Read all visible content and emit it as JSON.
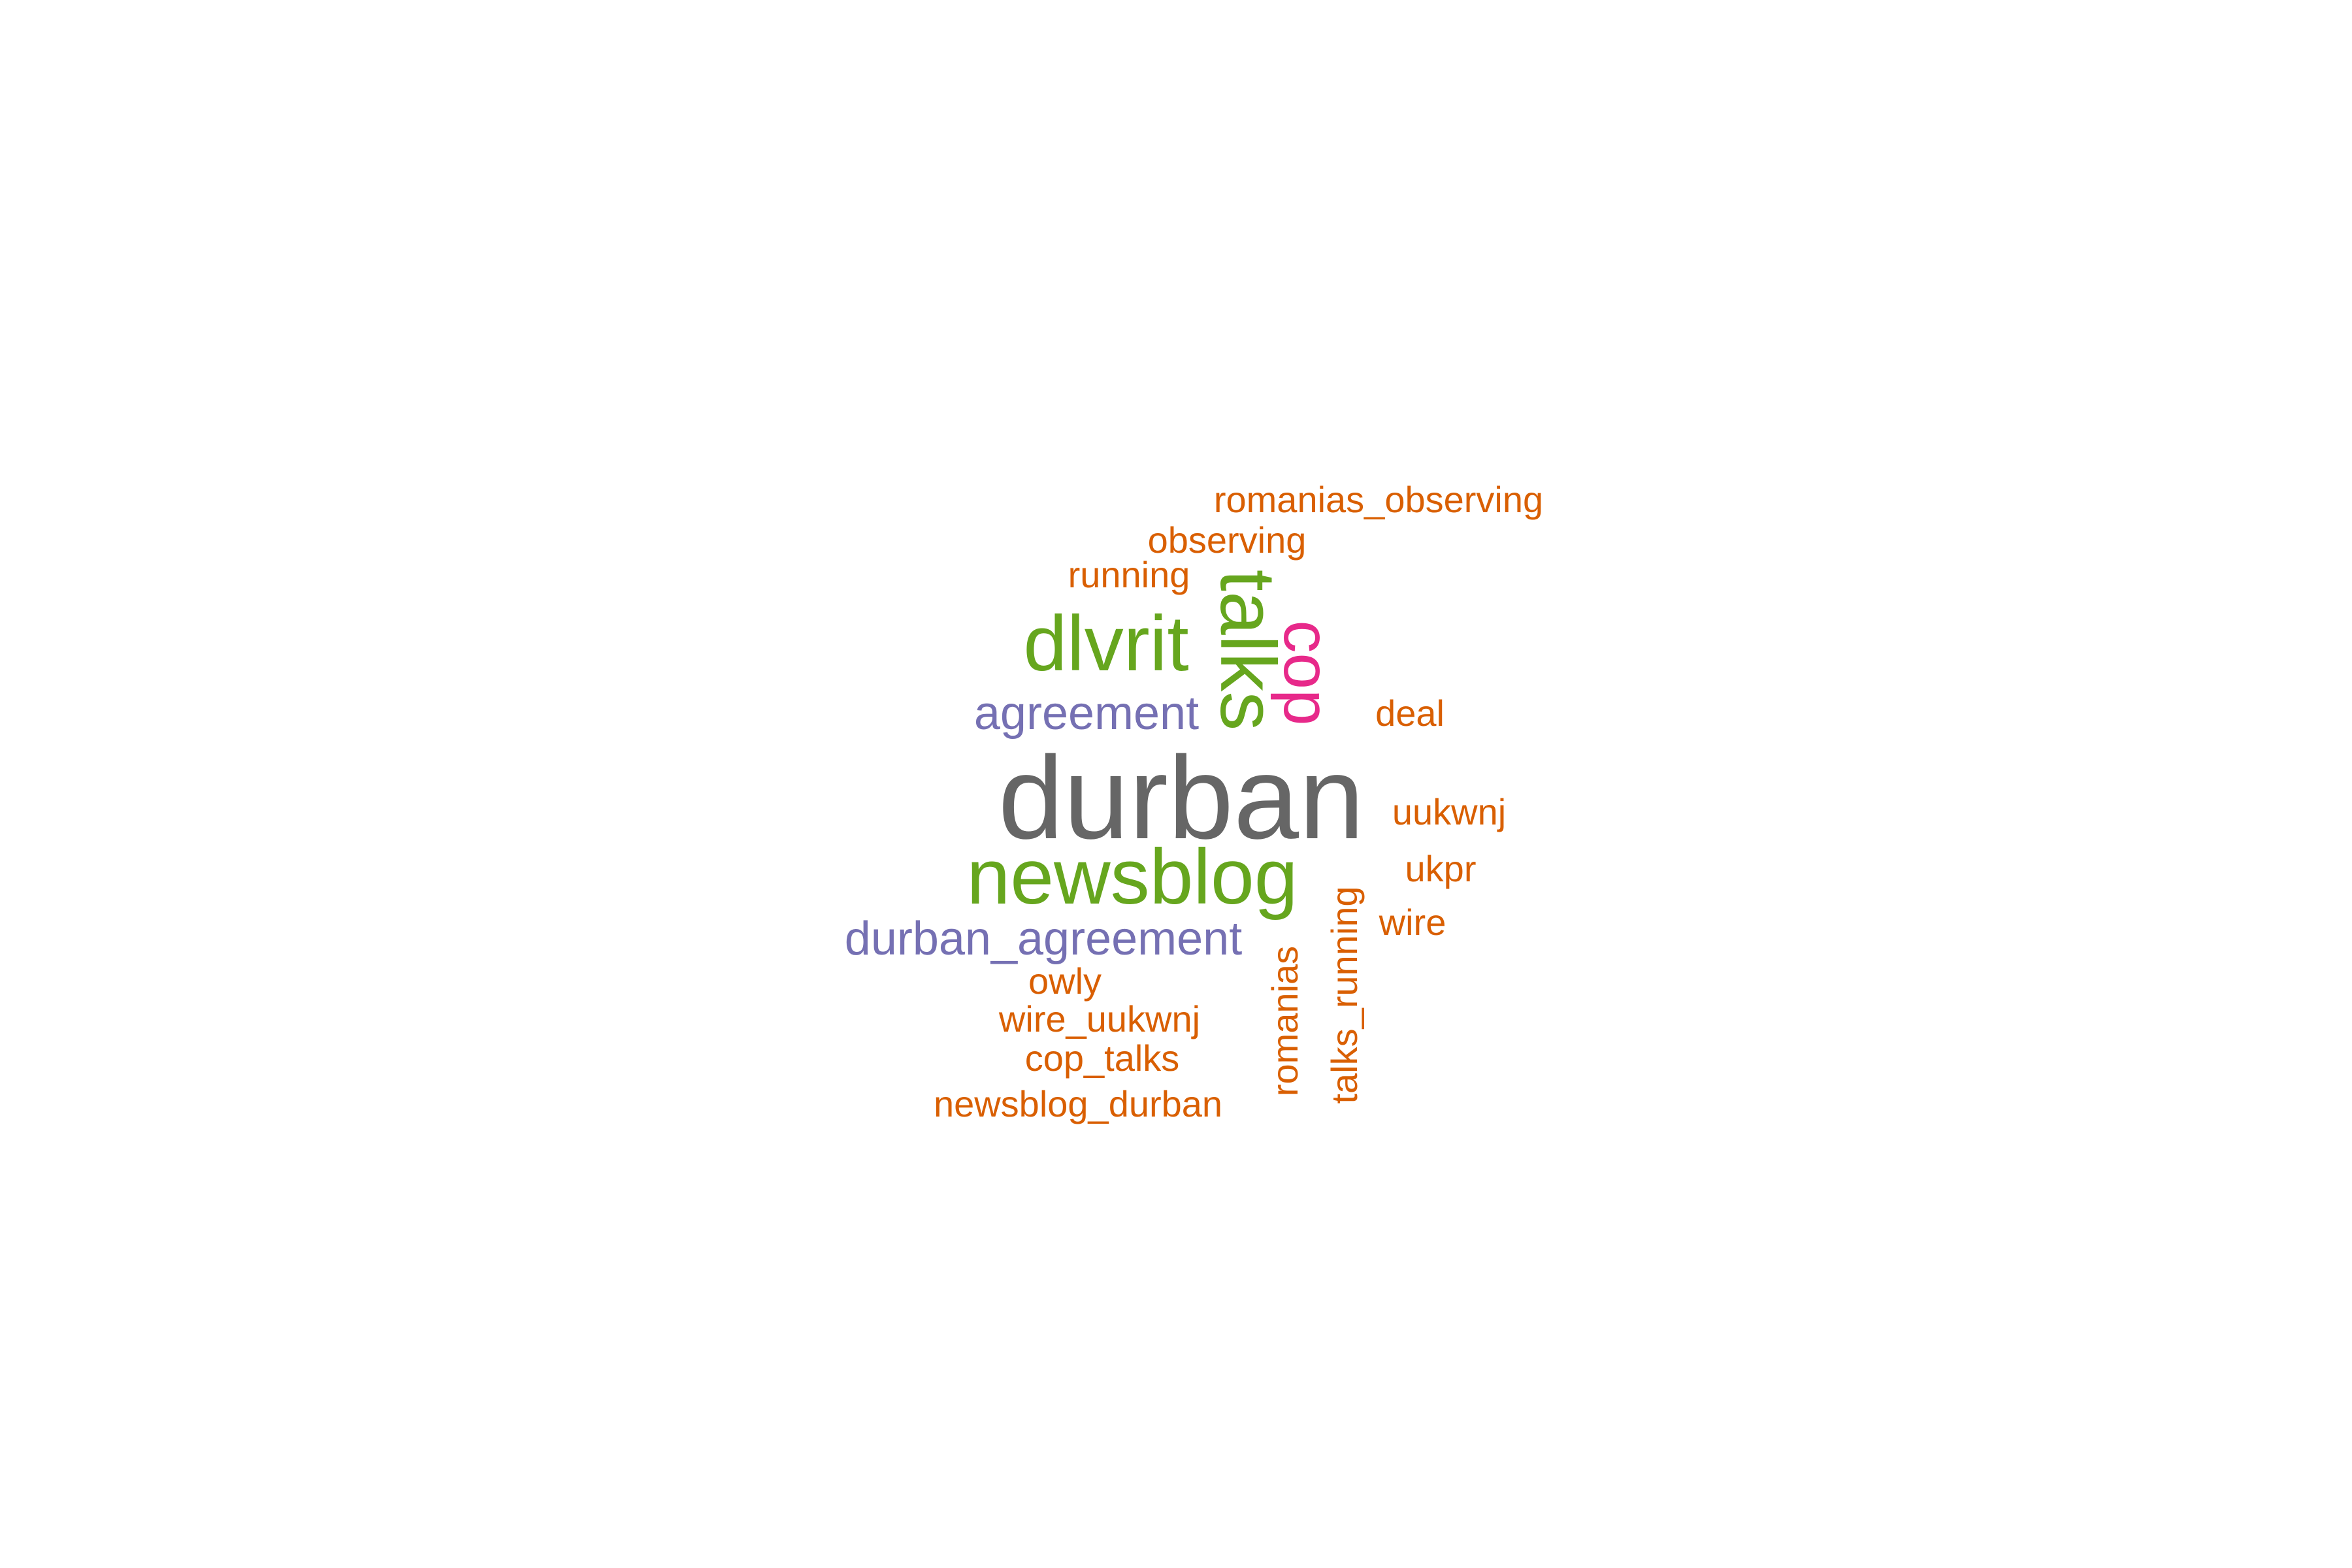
{
  "words": {
    "romanias_observing": {
      "text": "romanias_observing",
      "color": "#d95f02"
    },
    "observing": {
      "text": "observing",
      "color": "#d95f02"
    },
    "running": {
      "text": "running",
      "color": "#d95f02"
    },
    "dlvrit": {
      "text": "dlvrit",
      "color": "#66a61e"
    },
    "talks": {
      "text": "talks",
      "color": "#66a61e"
    },
    "cop": {
      "text": "cop",
      "color": "#e7298a"
    },
    "deal": {
      "text": "deal",
      "color": "#d95f02"
    },
    "agreement": {
      "text": "agreement",
      "color": "#7570b3"
    },
    "durban": {
      "text": "durban",
      "color": "#666666"
    },
    "uukwnj": {
      "text": "uukwnj",
      "color": "#d95f02"
    },
    "newsblog": {
      "text": "newsblog",
      "color": "#66a61e"
    },
    "ukpr": {
      "text": "ukpr",
      "color": "#d95f02"
    },
    "wire": {
      "text": "wire",
      "color": "#d95f02"
    },
    "talks_running": {
      "text": "talks_running",
      "color": "#d95f02"
    },
    "durban_agreement": {
      "text": "durban_agreement",
      "color": "#7570b3"
    },
    "romanias": {
      "text": "romanias",
      "color": "#d95f02"
    },
    "owly": {
      "text": "owly",
      "color": "#d95f02"
    },
    "wire_uukwnj": {
      "text": "wire_uukwnj",
      "color": "#d95f02"
    },
    "cop_talks": {
      "text": "cop_talks",
      "color": "#d95f02"
    },
    "newsblog_durban": {
      "text": "newsblog_durban",
      "color": "#d95f02"
    }
  }
}
